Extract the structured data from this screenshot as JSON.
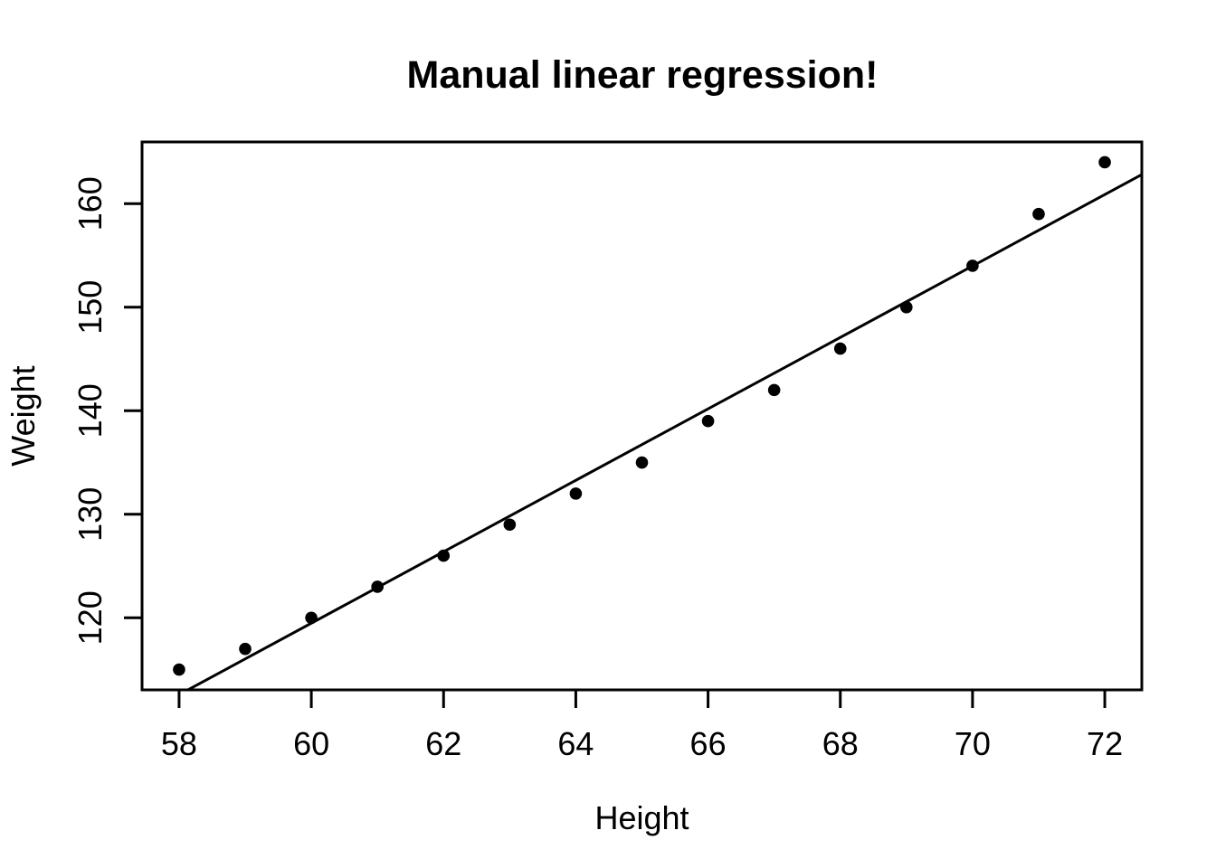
{
  "figure": {
    "background": "#ffffff",
    "foreground": "#000000"
  },
  "chart_data": {
    "type": "scatter",
    "title": "Manual linear regression!",
    "xlabel": "Height",
    "ylabel": "Weight",
    "x": [
      58,
      59,
      60,
      61,
      62,
      63,
      64,
      65,
      66,
      67,
      68,
      69,
      70,
      71,
      72
    ],
    "y": [
      115,
      117,
      120,
      123,
      126,
      129,
      132,
      135,
      139,
      142,
      146,
      150,
      154,
      159,
      164
    ],
    "fit_line": {
      "kind": "ols-regression",
      "slope": 3.45,
      "intercept": -87.52
    },
    "xticks": [
      58,
      60,
      62,
      64,
      66,
      68,
      70,
      72
    ],
    "yticks": [
      120,
      130,
      140,
      150,
      160
    ],
    "xlim": [
      57.44,
      72.56
    ],
    "ylim": [
      113.04,
      165.96
    ],
    "grid": false,
    "legend": "none",
    "point_style": "filled-circle",
    "point_color": "#000000",
    "line_color": "#000000",
    "box_color": "#000000"
  }
}
